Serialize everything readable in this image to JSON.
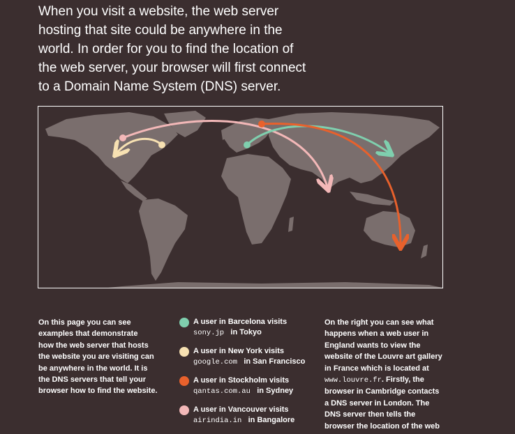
{
  "intro": {
    "lines": [
      "When you visit a website, the web server",
      "hosting that site could be anywhere in the",
      "world. In order for you to find the location of",
      "the web server, your browser will first connect",
      "to a Domain Name System (DNS) server."
    ]
  },
  "map": {
    "colors": {
      "land": "#7a6e6d",
      "background": "#3b2e2f",
      "barcelona_tokyo": "#7fcfae",
      "newyork_sanfrancisco": "#f7e1b2",
      "stockholm_sydney": "#e8612c",
      "vancouver_bangalore": "#f3b8b8"
    }
  },
  "left_text": {
    "lines": [
      "On this page you can see",
      "examples that demonstrate",
      "how the web server that hosts",
      "the website you are visiting can",
      "be anywhere in the world. It is",
      "the DNS servers that tell your",
      "browser how to find the website."
    ]
  },
  "legend": [
    {
      "line1": "A user in Barcelona visits",
      "domain": "sony.jp",
      "line2_suffix": "in Tokyo",
      "color": "#7fcfae",
      "icon": "teal-dot-icon"
    },
    {
      "line1": "A user in New York visits",
      "domain": "google.com",
      "line2_suffix": "in San Francisco",
      "color": "#f7e1b2",
      "icon": "cream-dot-icon"
    },
    {
      "line1": "A user in Stockholm visits",
      "domain": "qantas.com.au",
      "line2_suffix": "in Sydney",
      "color": "#e8612c",
      "icon": "orange-dot-icon"
    },
    {
      "line1": "A user in Vancouver visits",
      "domain": "airindia.in",
      "line2_suffix": "in Bangalore",
      "color": "#f3b8b8",
      "icon": "pink-dot-icon"
    }
  ],
  "right_text": {
    "lines": [
      {
        "text": "On the right you can see what"
      },
      {
        "text": "happens when a web user in"
      },
      {
        "text": "England wants to view the"
      },
      {
        "text": "website of the Louvre art gallery"
      },
      {
        "text": "in France which is located at"
      },
      {
        "mono": "www.louvre.fr",
        "text": ". Firstly, the"
      },
      {
        "text": "browser in Cambridge contacts"
      },
      {
        "text": "a DNS server in London. The"
      },
      {
        "text": "DNS server then tells the"
      },
      {
        "text": "browser the location of the web"
      }
    ]
  }
}
